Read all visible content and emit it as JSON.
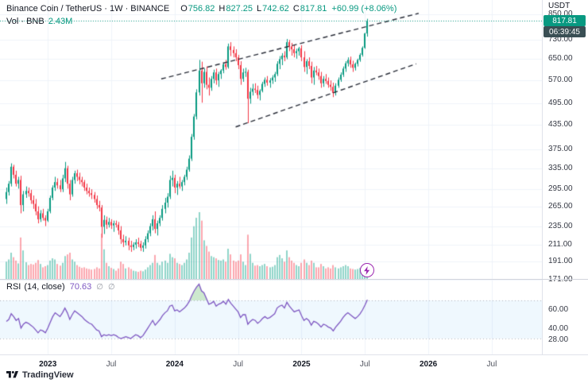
{
  "header": {
    "symbol_title": "Binance Coin / TetherUS · 1W · BINANCE",
    "ohlc": {
      "o_label": "O",
      "o": "756.82",
      "h_label": "H",
      "h": "827.25",
      "l_label": "L",
      "l": "742.62",
      "c_label": "C",
      "c": "817.81",
      "change": "+60.99 (+8.06%)"
    },
    "volume_label": "Vol · BNB",
    "volume_value": "2.43M"
  },
  "price_scale": {
    "currency_label": "USDT",
    "labels": [
      850,
      730,
      650,
      570,
      495,
      435,
      375,
      335,
      295,
      265,
      235,
      211,
      191,
      171
    ],
    "last_price_badge": "817.81",
    "countdown_badge": "06:39:45"
  },
  "rsi_pane": {
    "legend_title": "RSI",
    "legend_params": "(14, close)",
    "value": "70.63",
    "icon_glyph": "∅",
    "scale_labels": [
      60,
      40,
      28
    ],
    "upper_band": 70,
    "lower_band": 30
  },
  "time_scale": {
    "labels": [
      {
        "text": "2023",
        "week": 17,
        "major": true
      },
      {
        "text": "Jul",
        "week": 43,
        "major": false
      },
      {
        "text": "2024",
        "week": 69,
        "major": true
      },
      {
        "text": "Jul",
        "week": 95,
        "major": false
      },
      {
        "text": "2025",
        "week": 121,
        "major": true
      },
      {
        "text": "Jul",
        "week": 147,
        "major": false
      },
      {
        "text": "2026",
        "week": 173,
        "major": true
      },
      {
        "text": "Jul",
        "week": 199,
        "major": false
      }
    ]
  },
  "branding": {
    "logo_text": "TradingView"
  },
  "colors": {
    "up": "#089981",
    "down": "#F23645",
    "up_vol": "rgba(34,171,148,0.5)",
    "down_vol": "rgba(247,82,95,0.5)",
    "rsi_line": "#7E57C2",
    "band_fill": "rgba(33,150,243,0.07)",
    "band_border": "#B2B5BE",
    "overbought_fill": "rgba(76,175,80,0.28)",
    "trendline": "#2A2E39",
    "grid": "#F0F3FA",
    "last_price_line": "#089981"
  },
  "chart_data": {
    "type": "candlestick+volume+rsi",
    "symbol": "BNB/USDT",
    "interval": "1W",
    "price_scale_type": "log",
    "ylim": [
      171,
      860
    ],
    "last_price": 817.81,
    "candle_format": [
      "open",
      "high",
      "low",
      "close",
      "volume_millions"
    ],
    "candles": [
      [
        278,
        298,
        270,
        290,
        3.2
      ],
      [
        290,
        310,
        284,
        305,
        3.6
      ],
      [
        305,
        345,
        300,
        338,
        4.8
      ],
      [
        338,
        342,
        315,
        322,
        4.0
      ],
      [
        322,
        330,
        300,
        305,
        3.4
      ],
      [
        305,
        318,
        296,
        312,
        2.9
      ],
      [
        312,
        320,
        255,
        268,
        7.5
      ],
      [
        268,
        292,
        258,
        286,
        5.2
      ],
      [
        286,
        300,
        280,
        292,
        3.1
      ],
      [
        292,
        298,
        282,
        288,
        2.6
      ],
      [
        288,
        294,
        270,
        276,
        2.8
      ],
      [
        276,
        284,
        262,
        270,
        2.7
      ],
      [
        270,
        278,
        252,
        258,
        3.0
      ],
      [
        258,
        266,
        240,
        246,
        3.5
      ],
      [
        246,
        260,
        242,
        255,
        2.8
      ],
      [
        255,
        262,
        244,
        248,
        2.2
      ],
      [
        248,
        252,
        236,
        244,
        2.4
      ],
      [
        244,
        262,
        242,
        258,
        2.6
      ],
      [
        258,
        284,
        255,
        280,
        3.4
      ],
      [
        280,
        302,
        276,
        298,
        3.8
      ],
      [
        298,
        318,
        292,
        308,
        3.6
      ],
      [
        308,
        315,
        296,
        302,
        2.8
      ],
      [
        302,
        312,
        290,
        295,
        2.5
      ],
      [
        295,
        322,
        290,
        315,
        3.0
      ],
      [
        315,
        348,
        308,
        335,
        4.2
      ],
      [
        335,
        340,
        296,
        305,
        4.5
      ],
      [
        305,
        312,
        276,
        286,
        4.8
      ],
      [
        286,
        318,
        282,
        312,
        3.6
      ],
      [
        312,
        330,
        305,
        325,
        3.2
      ],
      [
        325,
        332,
        310,
        318,
        2.6
      ],
      [
        318,
        326,
        304,
        312,
        2.3
      ],
      [
        312,
        318,
        300,
        308,
        2.1
      ],
      [
        308,
        312,
        292,
        298,
        2.2
      ],
      [
        298,
        305,
        286,
        292,
        2.0
      ],
      [
        292,
        298,
        282,
        288,
        1.9
      ],
      [
        288,
        295,
        278,
        285,
        1.8
      ],
      [
        285,
        290,
        272,
        278,
        1.9
      ],
      [
        278,
        284,
        262,
        268,
        2.2
      ],
      [
        268,
        275,
        258,
        264,
        2.0
      ],
      [
        264,
        268,
        220,
        235,
        8.2
      ],
      [
        235,
        252,
        225,
        245,
        5.4
      ],
      [
        245,
        250,
        232,
        238,
        3.0
      ],
      [
        238,
        248,
        234,
        242,
        2.4
      ],
      [
        242,
        246,
        232,
        237,
        2.1
      ],
      [
        237,
        244,
        228,
        240,
        1.9
      ],
      [
        240,
        244,
        234,
        238,
        1.6
      ],
      [
        238,
        242,
        224,
        230,
        2.0
      ],
      [
        230,
        236,
        212,
        218,
        3.2
      ],
      [
        218,
        224,
        208,
        214,
        2.8
      ],
      [
        214,
        222,
        210,
        216,
        2.0
      ],
      [
        216,
        220,
        204,
        210,
        2.2
      ],
      [
        210,
        216,
        202,
        208,
        1.9
      ],
      [
        208,
        214,
        204,
        211,
        1.6
      ],
      [
        211,
        218,
        206,
        214,
        1.5
      ],
      [
        214,
        220,
        208,
        212,
        1.4
      ],
      [
        212,
        216,
        203,
        207,
        1.6
      ],
      [
        207,
        214,
        202,
        210,
        1.5
      ],
      [
        210,
        222,
        206,
        218,
        1.8
      ],
      [
        218,
        230,
        214,
        226,
        2.2
      ],
      [
        226,
        240,
        222,
        236,
        2.6
      ],
      [
        236,
        252,
        230,
        246,
        3.0
      ],
      [
        246,
        258,
        226,
        232,
        4.4
      ],
      [
        232,
        244,
        223,
        240,
        3.0
      ],
      [
        240,
        252,
        236,
        248,
        2.6
      ],
      [
        248,
        268,
        244,
        262,
        3.2
      ],
      [
        262,
        280,
        255,
        272,
        3.4
      ],
      [
        272,
        288,
        264,
        282,
        3.0
      ],
      [
        282,
        320,
        278,
        312,
        4.6
      ],
      [
        312,
        330,
        300,
        316,
        4.0
      ],
      [
        316,
        322,
        288,
        298,
        3.8
      ],
      [
        298,
        310,
        285,
        305,
        3.0
      ],
      [
        305,
        318,
        296,
        300,
        2.8
      ],
      [
        300,
        312,
        292,
        308,
        2.6
      ],
      [
        308,
        322,
        302,
        318,
        3.0
      ],
      [
        318,
        338,
        312,
        332,
        3.6
      ],
      [
        332,
        362,
        328,
        355,
        4.8
      ],
      [
        355,
        412,
        350,
        405,
        7.5
      ],
      [
        405,
        465,
        398,
        458,
        9.5
      ],
      [
        458,
        540,
        450,
        530,
        11.0
      ],
      [
        530,
        645,
        520,
        605,
        12.0
      ],
      [
        605,
        638,
        498,
        560,
        10.5
      ],
      [
        560,
        612,
        545,
        600,
        7.0
      ],
      [
        600,
        620,
        540,
        555,
        6.0
      ],
      [
        555,
        580,
        520,
        545,
        5.0
      ],
      [
        545,
        585,
        535,
        575,
        4.2
      ],
      [
        575,
        608,
        560,
        598,
        4.0
      ],
      [
        598,
        612,
        555,
        570,
        3.8
      ],
      [
        570,
        600,
        548,
        592,
        3.5
      ],
      [
        592,
        610,
        575,
        605,
        3.4
      ],
      [
        605,
        635,
        595,
        628,
        3.6
      ],
      [
        628,
        645,
        608,
        618,
        3.2
      ],
      [
        618,
        712,
        612,
        700,
        5.5
      ],
      [
        700,
        718,
        660,
        685,
        4.5
      ],
      [
        685,
        700,
        655,
        672,
        3.4
      ],
      [
        672,
        688,
        640,
        655,
        3.2
      ],
      [
        655,
        665,
        610,
        625,
        3.4
      ],
      [
        625,
        640,
        555,
        575,
        4.5
      ],
      [
        575,
        612,
        565,
        598,
        3.2
      ],
      [
        598,
        615,
        582,
        600,
        2.6
      ],
      [
        600,
        608,
        440,
        510,
        8.0
      ],
      [
        510,
        545,
        495,
        532,
        4.6
      ],
      [
        532,
        558,
        520,
        542,
        3.0
      ],
      [
        542,
        560,
        528,
        538,
        2.5
      ],
      [
        538,
        552,
        510,
        522,
        2.6
      ],
      [
        522,
        540,
        505,
        535,
        2.4
      ],
      [
        535,
        565,
        530,
        558,
        2.6
      ],
      [
        558,
        580,
        548,
        572,
        2.8
      ],
      [
        572,
        585,
        552,
        562,
        2.4
      ],
      [
        562,
        578,
        545,
        570,
        2.2
      ],
      [
        570,
        588,
        558,
        580,
        2.3
      ],
      [
        580,
        600,
        565,
        592,
        2.6
      ],
      [
        592,
        640,
        585,
        630,
        4.0
      ],
      [
        630,
        660,
        610,
        648,
        4.4
      ],
      [
        648,
        672,
        625,
        662,
        3.8
      ],
      [
        662,
        680,
        640,
        655,
        3.2
      ],
      [
        655,
        732,
        648,
        718,
        5.2
      ],
      [
        718,
        728,
        680,
        700,
        4.0
      ],
      [
        700,
        715,
        662,
        688,
        3.4
      ],
      [
        688,
        705,
        655,
        672,
        3.0
      ],
      [
        672,
        690,
        650,
        680,
        2.6
      ],
      [
        680,
        698,
        662,
        692,
        2.4
      ],
      [
        692,
        705,
        640,
        655,
        3.0
      ],
      [
        655,
        680,
        600,
        618,
        3.6
      ],
      [
        618,
        648,
        592,
        640,
        3.0
      ],
      [
        640,
        655,
        610,
        622,
        2.6
      ],
      [
        622,
        638,
        560,
        580,
        3.4
      ],
      [
        580,
        618,
        555,
        605,
        3.0
      ],
      [
        605,
        622,
        588,
        598,
        2.2
      ],
      [
        598,
        612,
        572,
        585,
        2.2
      ],
      [
        585,
        600,
        545,
        560,
        2.8
      ],
      [
        560,
        585,
        548,
        575,
        2.4
      ],
      [
        575,
        592,
        558,
        568,
        2.0
      ],
      [
        568,
        580,
        545,
        555,
        2.2
      ],
      [
        555,
        570,
        535,
        548,
        2.0
      ],
      [
        548,
        562,
        515,
        528,
        2.6
      ],
      [
        528,
        560,
        520,
        552,
        2.2
      ],
      [
        552,
        580,
        545,
        572,
        2.0
      ],
      [
        572,
        598,
        565,
        590,
        2.2
      ],
      [
        590,
        620,
        582,
        612,
        2.4
      ],
      [
        612,
        640,
        600,
        632,
        2.6
      ],
      [
        632,
        655,
        620,
        645,
        2.4
      ],
      [
        645,
        658,
        615,
        628,
        2.0
      ],
      [
        628,
        642,
        600,
        615,
        1.9
      ],
      [
        615,
        635,
        605,
        630,
        1.8
      ],
      [
        630,
        650,
        620,
        645,
        1.9
      ],
      [
        645,
        672,
        638,
        665,
        2.1
      ],
      [
        665,
        700,
        658,
        694,
        2.4
      ],
      [
        694,
        760,
        690,
        757,
        2.8
      ],
      [
        756.82,
        827.25,
        742.62,
        817.81,
        2.43
      ]
    ],
    "rsi": [
      48,
      50,
      56,
      53,
      49,
      51,
      41,
      45,
      47,
      46,
      44,
      42,
      39,
      36,
      39,
      38,
      36,
      41,
      47,
      53,
      57,
      55,
      53,
      57,
      62,
      57,
      50,
      55,
      59,
      57,
      55,
      53,
      50,
      48,
      46,
      45,
      42,
      39,
      38,
      32,
      34,
      33,
      34,
      33,
      34,
      33,
      31,
      30,
      31,
      32,
      31,
      30,
      32,
      34,
      33,
      31,
      33,
      37,
      41,
      45,
      49,
      44,
      47,
      50,
      54,
      57,
      59,
      64,
      65,
      59,
      60,
      58,
      60,
      62,
      65,
      69,
      75,
      80,
      84,
      87,
      80,
      78,
      72,
      66,
      67,
      69,
      64,
      66,
      67,
      69,
      66,
      71,
      67,
      64,
      61,
      58,
      52,
      55,
      55,
      45,
      48,
      50,
      49,
      46,
      48,
      51,
      53,
      51,
      52,
      54,
      56,
      62,
      64,
      65,
      62,
      68,
      64,
      61,
      58,
      59,
      60,
      54,
      49,
      51,
      49,
      44,
      48,
      47,
      45,
      42,
      45,
      44,
      42,
      41,
      38,
      42,
      45,
      48,
      52,
      55,
      57,
      55,
      53,
      51,
      53,
      56,
      60,
      65,
      70.63
    ],
    "trendlines": [
      {
        "week1": 63.5,
        "price1": 575,
        "week2": 169,
        "price2": 855,
        "style": "dashed"
      },
      {
        "week1": 94,
        "price1": 430,
        "week2": 168,
        "price2": 630,
        "style": "dashed"
      }
    ]
  }
}
